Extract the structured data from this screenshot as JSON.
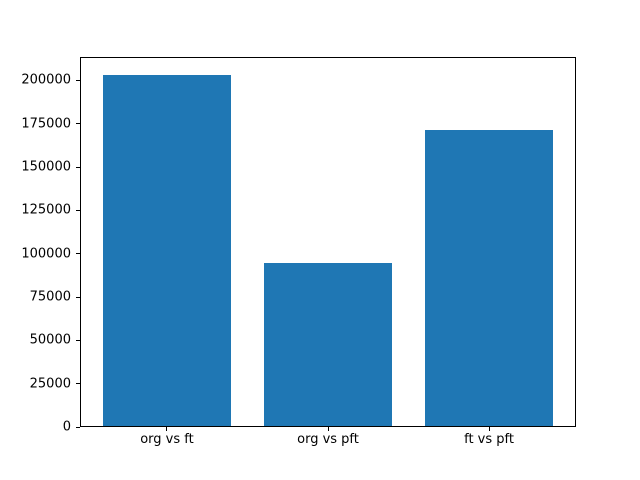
{
  "figure": {
    "background": "#ffffff",
    "spine_color": "#000000",
    "text_color": "#000000"
  },
  "chart_data": {
    "type": "bar",
    "categories": [
      "org vs ft",
      "org vs pft",
      "ft vs pft"
    ],
    "values": [
      203500,
      94500,
      171700
    ],
    "series_color": "#1f77b4",
    "bar_width": 0.8,
    "yticks": [
      0,
      25000,
      50000,
      75000,
      100000,
      125000,
      150000,
      175000,
      200000
    ],
    "ytick_labels": [
      "0",
      "25000",
      "50000",
      "75000",
      "100000",
      "125000",
      "150000",
      "175000",
      "200000"
    ],
    "ylim": [
      0,
      213500
    ],
    "grid": false,
    "legend": "none"
  }
}
